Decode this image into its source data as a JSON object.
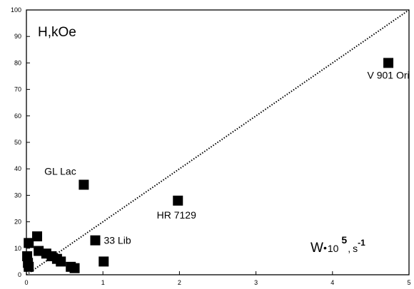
{
  "chart_data": {
    "type": "scatter",
    "title": "",
    "ylabel": "H,kOe",
    "xlabel": {
      "main": "W",
      "dot": "•",
      "ten": "10",
      "exp": "5",
      "comma": ",",
      "unit": "s",
      "unit_exp": "-1"
    },
    "xlim": [
      0,
      5
    ],
    "ylim": [
      0,
      100
    ],
    "xticks": [
      "0",
      "1",
      "2",
      "3",
      "4",
      "5"
    ],
    "yticks": [
      "0",
      "10",
      "20",
      "30",
      "40",
      "50",
      "60",
      "70",
      "80",
      "90",
      "100"
    ],
    "grid": false,
    "fit_line": {
      "style": "dotted",
      "x": [
        0,
        5
      ],
      "y": [
        0,
        100
      ]
    },
    "points": [
      {
        "x": 4.73,
        "y": 80,
        "label": "V 901 Ori"
      },
      {
        "x": 1.98,
        "y": 28,
        "label": "HR 7129"
      },
      {
        "x": 0.75,
        "y": 34,
        "label": "GL Lac"
      },
      {
        "x": 0.9,
        "y": 13,
        "label": "33 Lib"
      },
      {
        "x": 1.01,
        "y": 5,
        "label": ""
      },
      {
        "x": 0.03,
        "y": 12,
        "label": ""
      },
      {
        "x": 0.14,
        "y": 14.5,
        "label": ""
      },
      {
        "x": 0.01,
        "y": 7,
        "label": ""
      },
      {
        "x": 0.02,
        "y": 4.5,
        "label": ""
      },
      {
        "x": 0.03,
        "y": 3,
        "label": ""
      },
      {
        "x": 0.16,
        "y": 9,
        "label": ""
      },
      {
        "x": 0.26,
        "y": 8,
        "label": ""
      },
      {
        "x": 0.33,
        "y": 7,
        "label": ""
      },
      {
        "x": 0.4,
        "y": 6,
        "label": ""
      },
      {
        "x": 0.45,
        "y": 5,
        "label": ""
      },
      {
        "x": 0.58,
        "y": 3,
        "label": ""
      },
      {
        "x": 0.63,
        "y": 2.5,
        "label": ""
      }
    ]
  }
}
